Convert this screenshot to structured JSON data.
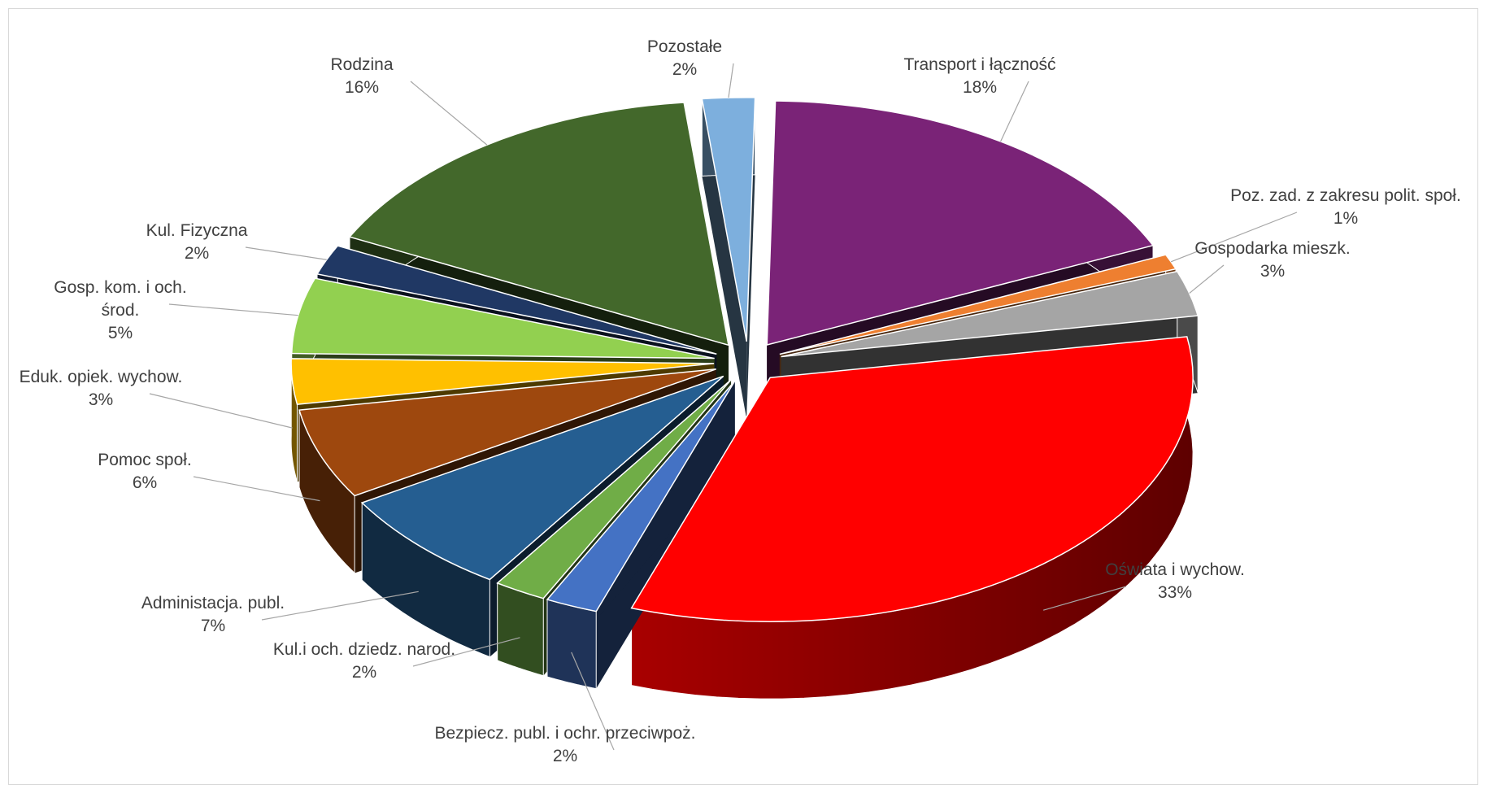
{
  "chart_data": {
    "type": "pie",
    "style": "3d-exploded",
    "title": "",
    "slices": [
      {
        "label": "Transport i łączność",
        "value_label": "18%",
        "value": 18,
        "color": "#7a2377"
      },
      {
        "label": "Poz. zad. z zakresu polit. społ.",
        "value_label": "1%",
        "value": 1,
        "color": "#ee7f30"
      },
      {
        "label": "Gospodarka mieszk.",
        "value_label": "3%",
        "value": 3,
        "color": "#a5a5a5"
      },
      {
        "label": "Oświata i wychow.",
        "value_label": "33%",
        "value": 33,
        "color": "#ff0000"
      },
      {
        "label": "Bezpiecz. publ. i ochr. przeciwpoż.",
        "value_label": "2%",
        "value": 2,
        "color": "#4472c4"
      },
      {
        "label": "Kul.i och. dziedz. narod.",
        "value_label": "2%",
        "value": 2,
        "color": "#70ad47"
      },
      {
        "label": "Administacja. publ.",
        "value_label": "7%",
        "value": 7,
        "color": "#255e91"
      },
      {
        "label": "Pomoc społ.",
        "value_label": "6%",
        "value": 6,
        "color": "#9e480e"
      },
      {
        "label": "Eduk. opiek. wychow.",
        "value_label": "3%",
        "value": 3,
        "color": "#ffc000"
      },
      {
        "label": "Gosp. kom. i och. środ.",
        "value_label": "5%",
        "value": 5,
        "color": "#92d050"
      },
      {
        "label": "Kul. Fizyczna",
        "value_label": "2%",
        "value": 2,
        "color": "#203864"
      },
      {
        "label": "Rodzina",
        "value_label": "16%",
        "value": 16,
        "color": "#43682b"
      },
      {
        "label": "Pozostałe",
        "value_label": "2%",
        "value": 2,
        "color": "#7dafdd"
      }
    ]
  }
}
